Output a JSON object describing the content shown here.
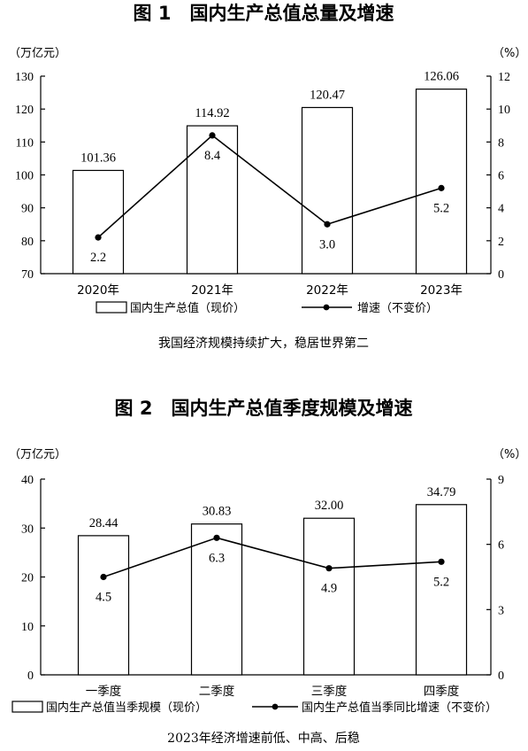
{
  "chart_data": [
    {
      "type": "bar",
      "title": "图 1　国内生产总值总量及增速",
      "y_unit": "（万亿元）",
      "y2_unit": "（%）",
      "categories": [
        "2020年",
        "2021年",
        "2022年",
        "2023年"
      ],
      "ylim": [
        70,
        130
      ],
      "yticks": [
        70,
        80,
        90,
        100,
        110,
        120,
        130
      ],
      "y2lim": [
        0,
        12
      ],
      "y2ticks": [
        0,
        2,
        4,
        6,
        8,
        10,
        12
      ],
      "series": [
        {
          "name": "国内生产总值（现价）",
          "type": "bar",
          "axis": "left",
          "values": [
            101.36,
            114.92,
            120.47,
            126.06
          ],
          "labels": [
            "101.36",
            "114.92",
            "120.47",
            "126.06"
          ]
        },
        {
          "name": "增速（不变价）",
          "type": "line",
          "axis": "right",
          "values": [
            2.2,
            8.4,
            3.0,
            5.2
          ],
          "labels": [
            "2.2",
            "8.4",
            "3.0",
            "5.2"
          ]
        }
      ],
      "caption": "我国经济规模持续扩大，稳居世界第二"
    },
    {
      "type": "bar",
      "title": "图 2　国内生产总值季度规模及增速",
      "y_unit": "（万亿元）",
      "y2_unit": "（%）",
      "categories": [
        "一季度",
        "二季度",
        "三季度",
        "四季度"
      ],
      "ylim": [
        0,
        40
      ],
      "yticks": [
        0,
        10,
        20,
        30,
        40
      ],
      "y2lim": [
        0,
        9
      ],
      "y2ticks": [
        0,
        3,
        6,
        9
      ],
      "series": [
        {
          "name": "国内生产总值当季规模（现价）",
          "type": "bar",
          "axis": "left",
          "values": [
            28.44,
            30.83,
            32.0,
            34.79
          ],
          "labels": [
            "28.44",
            "30.83",
            "32.00",
            "34.79"
          ]
        },
        {
          "name": "国内生产总值当季同比增速（不变价）",
          "type": "line",
          "axis": "right",
          "values": [
            4.5,
            6.3,
            4.9,
            5.2
          ],
          "labels": [
            "4.5",
            "6.3",
            "4.9",
            "5.2"
          ]
        }
      ],
      "caption": "2023年经济增速前低、中高、后稳"
    }
  ]
}
